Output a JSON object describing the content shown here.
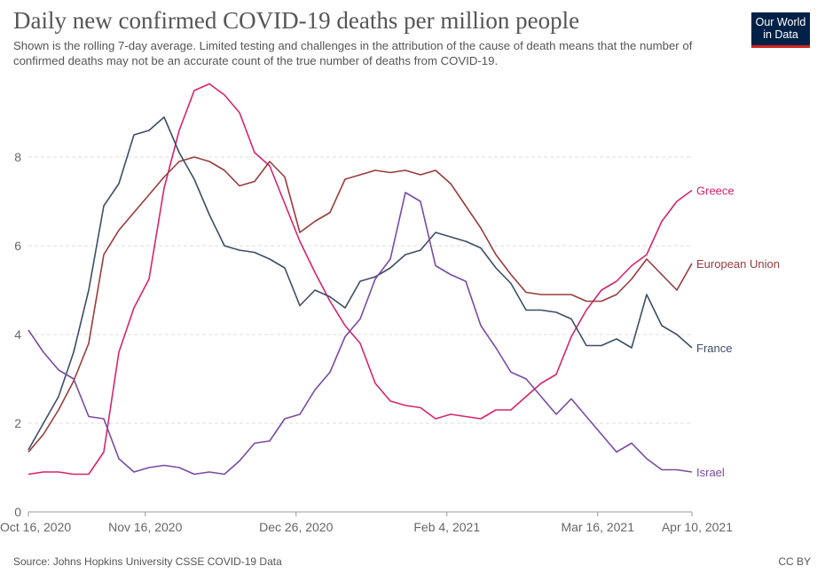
{
  "header": {
    "title": "Daily new confirmed COVID-19 deaths per million people",
    "subtitle": "Shown is the rolling 7-day average. Limited testing and challenges in the attribution of the cause of death means that the number of confirmed deaths may not be an accurate count of the true number of deaths from COVID-19.",
    "logo": "Our World in Data"
  },
  "footer": {
    "source": "Source: Johns Hopkins University CSSE COVID-19 Data",
    "license": "CC BY"
  },
  "chart_data": {
    "type": "line",
    "title": "Daily new confirmed COVID-19 deaths per million people",
    "ylim": [
      0,
      9.7
    ],
    "yticks": [
      "0",
      "2",
      "4",
      "6",
      "8"
    ],
    "xticks": [
      {
        "date": "2020-10-16",
        "label": "Oct 16, 2020"
      },
      {
        "date": "2020-11-16",
        "label": "Nov 16, 2020"
      },
      {
        "date": "2020-12-26",
        "label": "Dec 26, 2020"
      },
      {
        "date": "2021-02-04",
        "label": "Feb 4, 2021"
      },
      {
        "date": "2021-03-16",
        "label": "Mar 16, 2021"
      },
      {
        "date": "2021-04-10",
        "label": "Apr 10, 2021"
      }
    ],
    "grid": true,
    "legend": "right, labels at line ends",
    "x": [
      "2020-10-16",
      "2020-10-20",
      "2020-10-24",
      "2020-10-28",
      "2020-11-01",
      "2020-11-05",
      "2020-11-09",
      "2020-11-13",
      "2020-11-17",
      "2020-11-21",
      "2020-11-25",
      "2020-11-29",
      "2020-12-03",
      "2020-12-07",
      "2020-12-11",
      "2020-12-15",
      "2020-12-19",
      "2020-12-23",
      "2020-12-27",
      "2020-12-31",
      "2021-01-04",
      "2021-01-08",
      "2021-01-12",
      "2021-01-16",
      "2021-01-20",
      "2021-01-24",
      "2021-01-28",
      "2021-02-01",
      "2021-02-05",
      "2021-02-09",
      "2021-02-13",
      "2021-02-17",
      "2021-02-21",
      "2021-02-25",
      "2021-03-01",
      "2021-03-05",
      "2021-03-09",
      "2021-03-13",
      "2021-03-17",
      "2021-03-21",
      "2021-03-25",
      "2021-03-29",
      "2021-04-02",
      "2021-04-06",
      "2021-04-10"
    ],
    "series": [
      {
        "name": "Greece",
        "color": "#d6246e",
        "values": [
          0.85,
          0.9,
          0.9,
          0.85,
          0.85,
          1.35,
          3.6,
          4.6,
          5.25,
          7.3,
          8.6,
          9.5,
          9.65,
          9.4,
          9.0,
          8.1,
          7.8,
          6.95,
          6.1,
          5.4,
          4.75,
          4.2,
          3.8,
          2.9,
          2.5,
          2.4,
          2.35,
          2.1,
          2.2,
          2.15,
          2.1,
          2.3,
          2.3,
          2.6,
          2.9,
          3.1,
          3.95,
          4.55,
          5.0,
          5.2,
          5.55,
          5.8,
          6.55,
          7.0,
          7.25
        ]
      },
      {
        "name": "European Union",
        "color": "#9a3b3b",
        "values": [
          1.35,
          1.75,
          2.3,
          2.95,
          3.8,
          5.8,
          6.35,
          6.75,
          7.15,
          7.55,
          7.9,
          8.0,
          7.9,
          7.7,
          7.35,
          7.45,
          7.9,
          7.55,
          6.3,
          6.55,
          6.75,
          7.5,
          7.6,
          7.7,
          7.65,
          7.7,
          7.6,
          7.7,
          7.4,
          6.9,
          6.4,
          5.8,
          5.35,
          4.95,
          4.9,
          4.9,
          4.9,
          4.75,
          4.75,
          4.9,
          5.25,
          5.7,
          5.35,
          5.0,
          5.6
        ]
      },
      {
        "name": "France",
        "color": "#3c4e66",
        "values": [
          1.4,
          2.0,
          2.6,
          3.6,
          5.0,
          6.9,
          7.4,
          8.5,
          8.6,
          8.9,
          8.1,
          7.5,
          6.7,
          6.0,
          5.9,
          5.85,
          5.7,
          5.5,
          4.65,
          5.0,
          4.85,
          4.6,
          5.2,
          5.3,
          5.5,
          5.8,
          5.9,
          6.3,
          6.2,
          6.1,
          5.95,
          5.5,
          5.15,
          4.55,
          4.55,
          4.5,
          4.35,
          3.75,
          3.75,
          3.9,
          3.7,
          4.9,
          4.2,
          4.0,
          3.7
        ]
      },
      {
        "name": "Israel",
        "color": "#7a4aa3",
        "values": [
          4.1,
          3.6,
          3.2,
          3.0,
          2.15,
          2.1,
          1.2,
          0.9,
          1.0,
          1.05,
          1.0,
          0.85,
          0.9,
          0.85,
          1.15,
          1.55,
          1.6,
          2.1,
          2.2,
          2.75,
          3.15,
          3.95,
          4.35,
          5.25,
          5.7,
          7.2,
          7.0,
          5.55,
          5.35,
          5.2,
          4.2,
          3.7,
          3.15,
          3.0,
          2.6,
          2.2,
          2.55,
          2.15,
          1.75,
          1.35,
          1.55,
          1.2,
          0.95,
          0.95,
          0.9
        ]
      }
    ]
  }
}
